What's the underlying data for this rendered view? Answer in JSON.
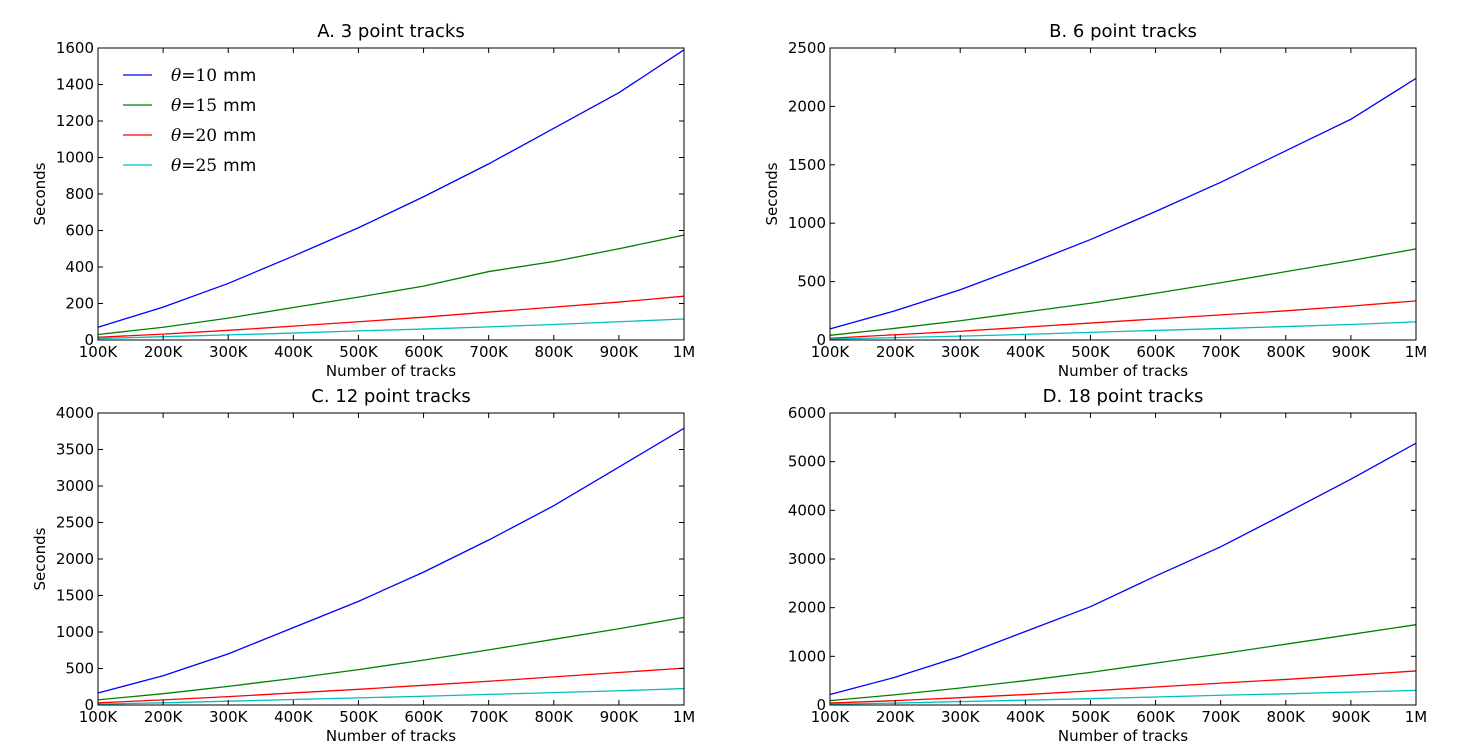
{
  "chart_data": [
    {
      "type": "line",
      "title": "A. 3 point tracks",
      "xlabel": "Number of tracks",
      "ylabel": "Seconds",
      "x": [
        "100K",
        "200K",
        "300K",
        "400K",
        "500K",
        "600K",
        "700K",
        "800K",
        "900K",
        "1M"
      ],
      "ylim": [
        0,
        1600
      ],
      "yticks": [
        0,
        200,
        400,
        600,
        800,
        1000,
        1200,
        1400,
        1600
      ],
      "legend": "upper-left",
      "series": [
        {
          "name_symbol": "θ",
          "name_rest": "=10",
          "name_unit": "mm",
          "color": "#0000ff",
          "values": [
            70,
            180,
            310,
            460,
            615,
            785,
            965,
            1160,
            1355,
            1590
          ]
        },
        {
          "name_symbol": "θ",
          "name_rest": "=15",
          "name_unit": "mm",
          "color": "#008000",
          "values": [
            30,
            70,
            120,
            178,
            235,
            295,
            375,
            430,
            500,
            575
          ]
        },
        {
          "name_symbol": "θ",
          "name_rest": "=20",
          "name_unit": "mm",
          "color": "#ff0000",
          "values": [
            15,
            32,
            53,
            76,
            100,
            125,
            153,
            180,
            208,
            240
          ]
        },
        {
          "name_symbol": "θ",
          "name_rest": "=25",
          "name_unit": "mm",
          "color": "#00bfbf",
          "values": [
            8,
            18,
            28,
            38,
            50,
            60,
            72,
            85,
            100,
            115
          ]
        }
      ]
    },
    {
      "type": "line",
      "title": "B. 6 point tracks",
      "xlabel": "Number of tracks",
      "ylabel": "Seconds",
      "x": [
        "100K",
        "200K",
        "300K",
        "400K",
        "500K",
        "600K",
        "700K",
        "800K",
        "900K",
        "1M"
      ],
      "ylim": [
        0,
        2500
      ],
      "yticks": [
        0,
        500,
        1000,
        1500,
        2000,
        2500
      ],
      "series": [
        {
          "color": "#0000ff",
          "values": [
            95,
            250,
            430,
            640,
            860,
            1100,
            1350,
            1620,
            1890,
            2240
          ]
        },
        {
          "color": "#008000",
          "values": [
            40,
            100,
            165,
            240,
            315,
            400,
            490,
            585,
            680,
            780
          ]
        },
        {
          "color": "#ff0000",
          "values": [
            15,
            45,
            75,
            110,
            145,
            180,
            215,
            250,
            290,
            335
          ]
        },
        {
          "color": "#00bfbf",
          "values": [
            8,
            20,
            33,
            48,
            65,
            82,
            98,
            115,
            133,
            155
          ]
        }
      ]
    },
    {
      "type": "line",
      "title": "C. 12 point tracks",
      "xlabel": "Number of tracks",
      "ylabel": "Seconds",
      "x": [
        "100K",
        "200K",
        "300K",
        "400K",
        "500K",
        "600K",
        "700K",
        "800K",
        "900K",
        "1M"
      ],
      "ylim": [
        0,
        4000
      ],
      "yticks": [
        0,
        500,
        1000,
        1500,
        2000,
        2500,
        3000,
        3500,
        4000
      ],
      "series": [
        {
          "color": "#0000ff",
          "values": [
            165,
            400,
            700,
            1060,
            1420,
            1820,
            2260,
            2730,
            3260,
            3790
          ]
        },
        {
          "color": "#008000",
          "values": [
            70,
            155,
            255,
            365,
            485,
            615,
            755,
            900,
            1045,
            1200
          ]
        },
        {
          "color": "#ff0000",
          "values": [
            30,
            70,
            115,
            165,
            215,
            270,
            325,
            385,
            445,
            505
          ]
        },
        {
          "color": "#00bfbf",
          "values": [
            12,
            30,
            52,
            75,
            98,
            120,
            145,
            170,
            195,
            225
          ]
        }
      ]
    },
    {
      "type": "line",
      "title": "D. 18 point tracks",
      "xlabel": "Number of tracks",
      "ylabel": "",
      "x": [
        "100K",
        "200K",
        "300K",
        "400K",
        "500K",
        "600K",
        "700K",
        "800K",
        "900K",
        "1M"
      ],
      "ylim": [
        0,
        6000
      ],
      "yticks": [
        0,
        1000,
        2000,
        3000,
        4000,
        5000,
        6000
      ],
      "series": [
        {
          "color": "#0000ff",
          "values": [
            215,
            570,
            1000,
            1510,
            2020,
            2650,
            3250,
            3940,
            4640,
            5380
          ]
        },
        {
          "color": "#008000",
          "values": [
            90,
            210,
            350,
            500,
            670,
            860,
            1050,
            1250,
            1450,
            1650
          ]
        },
        {
          "color": "#ff0000",
          "values": [
            40,
            90,
            150,
            215,
            290,
            370,
            450,
            525,
            610,
            700
          ]
        },
        {
          "color": "#00bfbf",
          "values": [
            15,
            40,
            70,
            100,
            130,
            165,
            200,
            230,
            265,
            300
          ]
        }
      ]
    }
  ]
}
